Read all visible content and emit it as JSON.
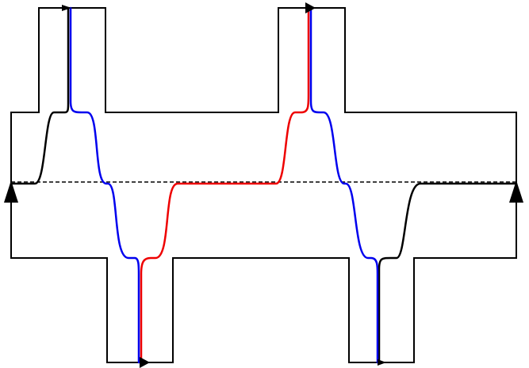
{
  "diagram": {
    "colors": {
      "outline": "#000000",
      "dashed_line": "#000000",
      "curve_black": "#000000",
      "curve_blue": "#0000ee",
      "curve_red": "#ee0000",
      "background": "#ffffff"
    },
    "elements": [
      "region-outline",
      "center-dashed-line",
      "black-curve",
      "blue-curve",
      "red-curve",
      "left-arrow-icon",
      "right-arrow-icon",
      "top-left-arrow-icon",
      "top-right-arrow-icon",
      "bottom-left-arrow-icon",
      "bottom-right-arrow-icon"
    ]
  }
}
